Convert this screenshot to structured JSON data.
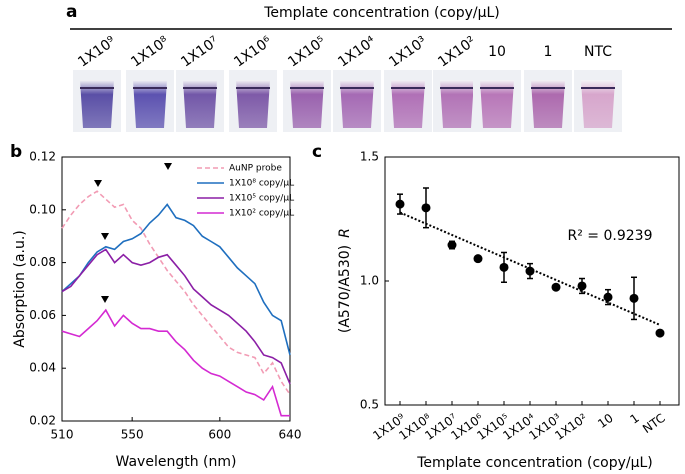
{
  "panel_a": {
    "label": "a",
    "title": "Template concentration (copy/µL)",
    "tubes": [
      "1X10⁹",
      "1X10⁸",
      "1X10⁷",
      "1X10⁶",
      "1X10⁵",
      "1X10⁴",
      "1X10³",
      "1X10²",
      "10",
      "1",
      "NTC"
    ],
    "tube_colors": [
      "#5a4fa6",
      "#5c52b0",
      "#7257a8",
      "#7e5aa8",
      "#9a62ae",
      "#a56ab4",
      "#b070b6",
      "#b273b6",
      "#b877b8",
      "#ad6aae",
      "#d7a6cc"
    ]
  },
  "chart_data": [
    {
      "type": "line",
      "label": "b",
      "xlabel": "Wavelength (nm)",
      "ylabel": "Absorption (a.u.)",
      "x": [
        510,
        515,
        520,
        525,
        530,
        535,
        540,
        545,
        550,
        555,
        560,
        565,
        570,
        575,
        580,
        585,
        590,
        595,
        600,
        605,
        610,
        615,
        620,
        625,
        630,
        635,
        640
      ],
      "xlim": [
        510,
        640
      ],
      "xticks": [
        510,
        550,
        600,
        640
      ],
      "ylim": [
        0.02,
        0.12
      ],
      "yticks": [
        0.02,
        0.04,
        0.06,
        0.08,
        {
          "value": 0.1,
          "label": "0.10"
        },
        0.12
      ],
      "series": [
        {
          "name": "AuNP probe",
          "color": "#f29bb4",
          "line_style": "dashed",
          "values": [
            0.093,
            0.098,
            0.102,
            0.105,
            0.107,
            0.104,
            0.101,
            0.102,
            0.096,
            0.093,
            0.087,
            0.082,
            0.077,
            0.073,
            0.069,
            0.064,
            0.06,
            0.056,
            0.052,
            0.048,
            0.046,
            0.045,
            0.044,
            0.038,
            0.042,
            0.035,
            0.03
          ]
        },
        {
          "name": "1X10⁸ copy/µL",
          "color": "#1f6fbf",
          "line_style": "solid",
          "values": [
            0.069,
            0.072,
            0.075,
            0.08,
            0.084,
            0.086,
            0.085,
            0.088,
            0.089,
            0.091,
            0.095,
            0.098,
            0.102,
            0.097,
            0.096,
            0.094,
            0.09,
            0.088,
            0.086,
            0.082,
            0.078,
            0.075,
            0.072,
            0.065,
            0.06,
            0.058,
            0.045
          ]
        },
        {
          "name": "1X10⁵ copy/µL",
          "color": "#8b1fa6",
          "line_style": "solid",
          "values": [
            0.069,
            0.071,
            0.075,
            0.079,
            0.083,
            0.085,
            0.08,
            0.083,
            0.08,
            0.079,
            0.08,
            0.082,
            0.083,
            0.079,
            0.075,
            0.07,
            0.067,
            0.064,
            0.062,
            0.06,
            0.057,
            0.054,
            0.05,
            0.045,
            0.044,
            0.042,
            0.034
          ]
        },
        {
          "name": "1X10² copy/µL",
          "color": "#d42ad2",
          "line_style": "solid",
          "values": [
            0.054,
            0.053,
            0.052,
            0.055,
            0.058,
            0.062,
            0.056,
            0.06,
            0.057,
            0.055,
            0.055,
            0.054,
            0.054,
            0.05,
            0.047,
            0.043,
            0.04,
            0.038,
            0.037,
            0.035,
            0.033,
            0.031,
            0.03,
            0.028,
            0.033,
            0.022,
            0.022
          ]
        }
      ]
    },
    {
      "type": "scatter",
      "label": "c",
      "xlabel": "Template concentration (copy/µL)",
      "ylabel_var": "R",
      "ylabel": "(A570/A530)",
      "annotation": "R² = 0.9239",
      "color": "#000000",
      "trendline": true,
      "categories": [
        "1X10⁹",
        "1X10⁸",
        "1X10⁷",
        "1X10⁶",
        "1X10⁵",
        "1X10⁴",
        "1X10³",
        "1X10²",
        "10",
        "1",
        "NTC"
      ],
      "values": [
        1.31,
        1.295,
        1.145,
        1.09,
        1.055,
        1.04,
        0.975,
        0.98,
        0.935,
        0.93,
        0.79
      ],
      "errors": [
        0.04,
        0.08,
        0.015,
        0.01,
        0.06,
        0.03,
        0.01,
        0.03,
        0.03,
        0.085,
        0.01
      ],
      "ylim": [
        0.5,
        1.5
      ],
      "yticks": [
        0.5,
        {
          "value": 1,
          "label": "1.0"
        },
        1.5
      ]
    }
  ]
}
